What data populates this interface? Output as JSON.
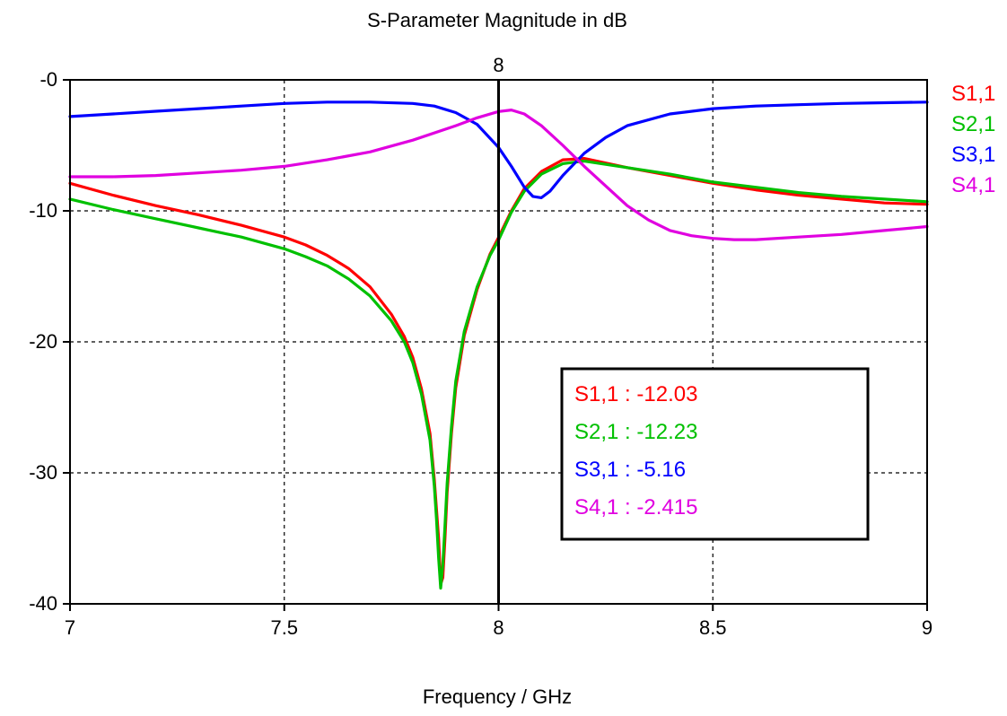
{
  "chart_data": {
    "type": "line",
    "title": "S-Parameter Magnitude in dB",
    "xlabel": "Frequency / GHz",
    "ylabel": "",
    "xlim": [
      7,
      9
    ],
    "ylim": [
      -40,
      0
    ],
    "x_ticks": [
      "7",
      "7.5",
      "8",
      "8.5",
      "9"
    ],
    "y_ticks": [
      "-0",
      "-10",
      "-20",
      "-30",
      "-40"
    ],
    "grid": true,
    "grid_style": "dashed",
    "legend_position": "right",
    "marker": {
      "x": 8,
      "label": "8"
    },
    "readout": [
      {
        "name": "S1,1",
        "separator": " : ",
        "value": "-12.03"
      },
      {
        "name": "S2,1",
        "separator": " : ",
        "value": "-12.23"
      },
      {
        "name": "S3,1",
        "separator": " : ",
        "value": "-5.16"
      },
      {
        "name": "S4,1",
        "separator": " : ",
        "value": "-2.415"
      }
    ],
    "series": [
      {
        "name": "S1,1",
        "color": "#ff0000",
        "points": [
          [
            7.0,
            -7.9
          ],
          [
            7.1,
            -8.8
          ],
          [
            7.2,
            -9.6
          ],
          [
            7.3,
            -10.3
          ],
          [
            7.4,
            -11.1
          ],
          [
            7.5,
            -12.0
          ],
          [
            7.55,
            -12.6
          ],
          [
            7.6,
            -13.4
          ],
          [
            7.65,
            -14.4
          ],
          [
            7.7,
            -15.8
          ],
          [
            7.75,
            -17.9
          ],
          [
            7.78,
            -19.6
          ],
          [
            7.8,
            -21.2
          ],
          [
            7.82,
            -23.6
          ],
          [
            7.84,
            -27.0
          ],
          [
            7.85,
            -30.5
          ],
          [
            7.86,
            -35.0
          ],
          [
            7.865,
            -38.5
          ],
          [
            7.87,
            -38.0
          ],
          [
            7.875,
            -35.0
          ],
          [
            7.88,
            -31.5
          ],
          [
            7.89,
            -27.0
          ],
          [
            7.9,
            -23.5
          ],
          [
            7.92,
            -19.5
          ],
          [
            7.95,
            -16.0
          ],
          [
            7.98,
            -13.3
          ],
          [
            8.0,
            -12.03
          ],
          [
            8.03,
            -10.0
          ],
          [
            8.06,
            -8.3
          ],
          [
            8.1,
            -7.0
          ],
          [
            8.15,
            -6.1
          ],
          [
            8.2,
            -6.0
          ],
          [
            8.3,
            -6.7
          ],
          [
            8.4,
            -7.3
          ],
          [
            8.5,
            -7.9
          ],
          [
            8.6,
            -8.4
          ],
          [
            8.7,
            -8.8
          ],
          [
            8.8,
            -9.1
          ],
          [
            8.9,
            -9.4
          ],
          [
            9.0,
            -9.5
          ]
        ]
      },
      {
        "name": "S2,1",
        "color": "#00c000",
        "points": [
          [
            7.0,
            -9.1
          ],
          [
            7.1,
            -9.9
          ],
          [
            7.2,
            -10.6
          ],
          [
            7.3,
            -11.3
          ],
          [
            7.4,
            -12.0
          ],
          [
            7.5,
            -12.9
          ],
          [
            7.55,
            -13.5
          ],
          [
            7.6,
            -14.2
          ],
          [
            7.65,
            -15.2
          ],
          [
            7.7,
            -16.5
          ],
          [
            7.75,
            -18.4
          ],
          [
            7.78,
            -20.0
          ],
          [
            7.8,
            -21.6
          ],
          [
            7.82,
            -24.0
          ],
          [
            7.84,
            -27.5
          ],
          [
            7.85,
            -31.0
          ],
          [
            7.855,
            -33.5
          ],
          [
            7.86,
            -36.5
          ],
          [
            7.865,
            -38.8
          ],
          [
            7.87,
            -37.0
          ],
          [
            7.875,
            -34.0
          ],
          [
            7.88,
            -30.8
          ],
          [
            7.89,
            -26.5
          ],
          [
            7.9,
            -23.0
          ],
          [
            7.92,
            -19.2
          ],
          [
            7.95,
            -15.8
          ],
          [
            7.98,
            -13.4
          ],
          [
            8.0,
            -12.23
          ],
          [
            8.03,
            -10.1
          ],
          [
            8.06,
            -8.5
          ],
          [
            8.1,
            -7.2
          ],
          [
            8.15,
            -6.4
          ],
          [
            8.2,
            -6.2
          ],
          [
            8.3,
            -6.7
          ],
          [
            8.4,
            -7.2
          ],
          [
            8.5,
            -7.8
          ],
          [
            8.6,
            -8.2
          ],
          [
            8.7,
            -8.6
          ],
          [
            8.8,
            -8.9
          ],
          [
            8.9,
            -9.1
          ],
          [
            9.0,
            -9.3
          ]
        ]
      },
      {
        "name": "S3,1",
        "color": "#0000ff",
        "points": [
          [
            7.0,
            -2.8
          ],
          [
            7.1,
            -2.6
          ],
          [
            7.2,
            -2.4
          ],
          [
            7.3,
            -2.2
          ],
          [
            7.4,
            -2.0
          ],
          [
            7.5,
            -1.8
          ],
          [
            7.6,
            -1.7
          ],
          [
            7.7,
            -1.7
          ],
          [
            7.8,
            -1.8
          ],
          [
            7.85,
            -2.0
          ],
          [
            7.9,
            -2.5
          ],
          [
            7.95,
            -3.4
          ],
          [
            8.0,
            -5.16
          ],
          [
            8.03,
            -6.6
          ],
          [
            8.06,
            -8.2
          ],
          [
            8.08,
            -8.9
          ],
          [
            8.1,
            -9.0
          ],
          [
            8.12,
            -8.5
          ],
          [
            8.15,
            -7.3
          ],
          [
            8.2,
            -5.6
          ],
          [
            8.25,
            -4.4
          ],
          [
            8.3,
            -3.5
          ],
          [
            8.4,
            -2.6
          ],
          [
            8.5,
            -2.2
          ],
          [
            8.6,
            -2.0
          ],
          [
            8.7,
            -1.9
          ],
          [
            8.8,
            -1.8
          ],
          [
            8.9,
            -1.75
          ],
          [
            9.0,
            -1.7
          ]
        ]
      },
      {
        "name": "S4,1",
        "color": "#e000e0",
        "points": [
          [
            7.0,
            -7.4
          ],
          [
            7.1,
            -7.4
          ],
          [
            7.2,
            -7.3
          ],
          [
            7.3,
            -7.1
          ],
          [
            7.4,
            -6.9
          ],
          [
            7.5,
            -6.6
          ],
          [
            7.6,
            -6.1
          ],
          [
            7.7,
            -5.5
          ],
          [
            7.8,
            -4.6
          ],
          [
            7.9,
            -3.5
          ],
          [
            7.95,
            -2.9
          ],
          [
            8.0,
            -2.415
          ],
          [
            8.03,
            -2.3
          ],
          [
            8.06,
            -2.6
          ],
          [
            8.1,
            -3.5
          ],
          [
            8.15,
            -5.0
          ],
          [
            8.2,
            -6.6
          ],
          [
            8.25,
            -8.1
          ],
          [
            8.3,
            -9.6
          ],
          [
            8.35,
            -10.7
          ],
          [
            8.4,
            -11.5
          ],
          [
            8.45,
            -11.9
          ],
          [
            8.5,
            -12.1
          ],
          [
            8.55,
            -12.2
          ],
          [
            8.6,
            -12.2
          ],
          [
            8.7,
            -12.0
          ],
          [
            8.8,
            -11.8
          ],
          [
            8.9,
            -11.5
          ],
          [
            9.0,
            -11.2
          ]
        ]
      }
    ]
  }
}
